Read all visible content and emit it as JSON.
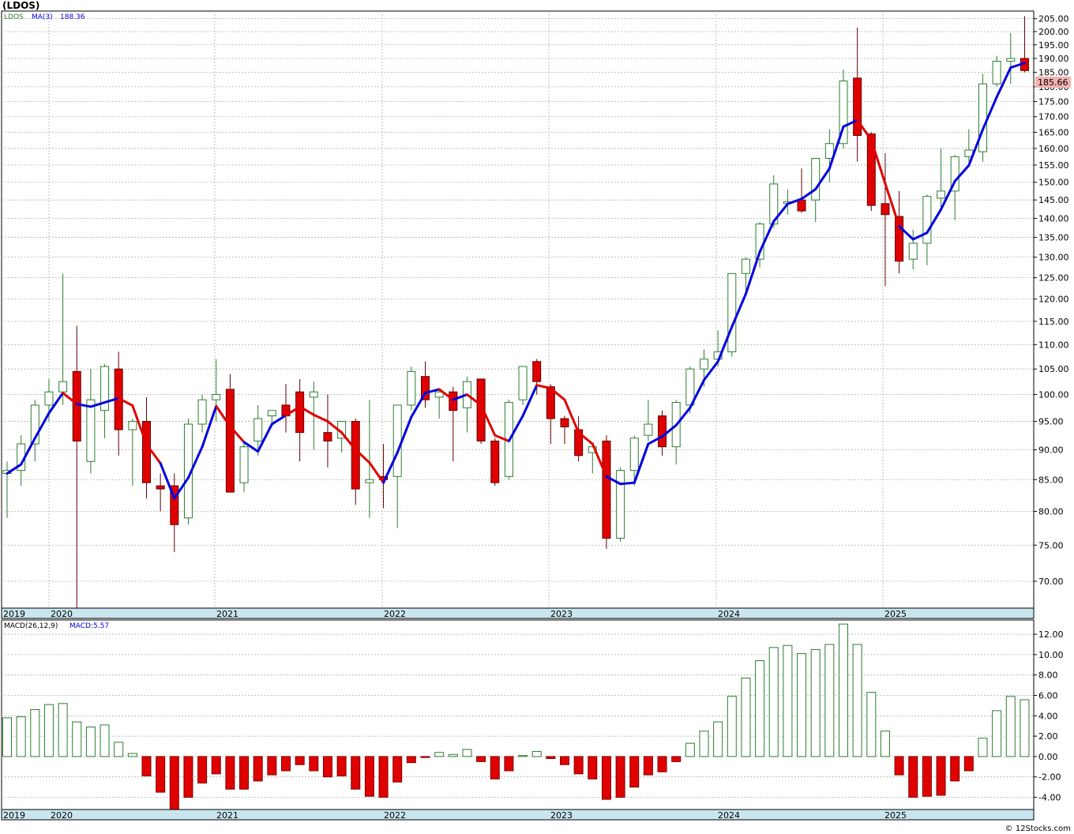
{
  "header": {
    "title": "(LDOS)",
    "credit": "© 12Stocks.com"
  },
  "colors": {
    "up": "#2e7d32",
    "down": "#e00000",
    "ma_up": "#0000e0",
    "ma_down": "#e00000",
    "axis_band": "#c9e6ef",
    "grid": "#b0b0b0",
    "last_price_bg": "#f4b0b0"
  },
  "chart_data": [
    {
      "type": "candlestick",
      "ticker": "LDOS",
      "legend": {
        "symbol": "LDOS",
        "ma_label": "MA(3)",
        "ma_value": "188.36"
      },
      "last_price": "185.66",
      "scale": "log",
      "ylim": [
        66.5,
        208
      ],
      "y_ticks": [
        "205.00",
        "200.00",
        "195.00",
        "190.00",
        "185.00",
        "180.00",
        "175.00",
        "170.00",
        "165.00",
        "160.00",
        "155.00",
        "150.00",
        "145.00",
        "140.00",
        "135.00",
        "130.00",
        "125.00",
        "120.00",
        "115.00",
        "110.00",
        "105.00",
        "100.00",
        "95.00",
        "90.00",
        "85.00",
        "80.00",
        "75.00",
        "70.00"
      ],
      "year_labels": [
        "2019",
        "2020",
        "2021",
        "2022",
        "2023",
        "2024",
        "2025"
      ],
      "candles": [
        [
          86.0,
          88.0,
          79.0,
          86.5
        ],
        [
          86.5,
          92.5,
          84.0,
          91.0
        ],
        [
          91.0,
          99.0,
          88.0,
          98.0
        ],
        [
          98.0,
          103.0,
          95.0,
          100.5
        ],
        [
          100.5,
          126.0,
          98.0,
          102.5
        ],
        [
          104.5,
          114.0,
          66.5,
          91.5
        ],
        [
          88.0,
          105.0,
          86.0,
          99.0
        ],
        [
          97.0,
          106.0,
          92.0,
          105.5
        ],
        [
          105.0,
          108.5,
          89.0,
          93.5
        ],
        [
          93.5,
          95.5,
          84.0,
          95.0
        ],
        [
          95.0,
          99.5,
          82.0,
          84.5
        ],
        [
          84.0,
          86.0,
          80.0,
          83.5
        ],
        [
          84.0,
          86.0,
          74.0,
          78.0
        ],
        [
          79.0,
          95.5,
          78.0,
          94.5
        ],
        [
          94.5,
          100.0,
          93.0,
          99.0
        ],
        [
          99.0,
          107.0,
          95.0,
          100.0
        ],
        [
          101.0,
          104.0,
          83.0,
          83.0
        ],
        [
          84.5,
          91.5,
          83.0,
          90.5
        ],
        [
          91.5,
          98.0,
          89.0,
          95.5
        ],
        [
          96.0,
          97.0,
          94.5,
          97.0
        ],
        [
          98.0,
          102.0,
          93.0,
          96.0
        ],
        [
          100.5,
          103.0,
          88.0,
          93.0
        ],
        [
          99.5,
          102.5,
          90.0,
          100.5
        ],
        [
          93.0,
          100.0,
          87.0,
          91.5
        ],
        [
          92.0,
          95.0,
          89.5,
          95.0
        ],
        [
          95.0,
          95.5,
          81.0,
          83.5
        ],
        [
          84.5,
          99.0,
          79.0,
          85.0
        ],
        [
          85.5,
          91.0,
          80.5,
          85.0
        ],
        [
          85.5,
          98.0,
          77.5,
          98.0
        ],
        [
          98.0,
          105.5,
          97.0,
          104.5
        ],
        [
          103.5,
          106.5,
          97.5,
          99.0
        ],
        [
          99.5,
          101.0,
          95.5,
          100.5
        ],
        [
          100.5,
          101.5,
          88.0,
          97.0
        ],
        [
          97.5,
          103.5,
          93.0,
          102.5
        ],
        [
          103.0,
          103.0,
          91.0,
          91.5
        ],
        [
          91.5,
          92.0,
          84.0,
          84.5
        ],
        [
          85.5,
          99.0,
          85.0,
          98.5
        ],
        [
          99.0,
          105.5,
          98.0,
          105.5
        ],
        [
          106.5,
          107.0,
          100.0,
          102.5
        ],
        [
          101.5,
          102.0,
          91.0,
          95.5
        ],
        [
          95.5,
          96.0,
          91.0,
          94.0
        ],
        [
          93.5,
          96.0,
          88.0,
          89.0
        ],
        [
          89.5,
          91.0,
          86.0,
          90.5
        ],
        [
          91.5,
          92.5,
          74.5,
          76.0
        ],
        [
          76.0,
          87.0,
          75.5,
          86.5
        ],
        [
          86.5,
          92.5,
          84.0,
          92.0
        ],
        [
          92.5,
          99.0,
          91.5,
          94.5
        ],
        [
          96.0,
          97.0,
          89.0,
          90.5
        ],
        [
          90.5,
          99.0,
          87.5,
          98.5
        ],
        [
          98.0,
          105.5,
          96.5,
          105.0
        ],
        [
          105.0,
          109.0,
          101.5,
          107.0
        ],
        [
          107.0,
          113.0,
          105.5,
          108.5
        ],
        [
          108.5,
          126.0,
          107.5,
          126.0
        ],
        [
          126.0,
          130.0,
          121.5,
          129.5
        ],
        [
          129.5,
          139.0,
          127.5,
          138.5
        ],
        [
          138.5,
          152.0,
          137.5,
          149.5
        ],
        [
          144.0,
          148.0,
          141.0,
          144.5
        ],
        [
          145.0,
          154.0,
          141.5,
          142.0
        ],
        [
          145.0,
          157.0,
          139.0,
          157.0
        ],
        [
          157.0,
          166.0,
          150.0,
          161.5
        ],
        [
          161.5,
          186.0,
          160.0,
          182.0
        ],
        [
          183.0,
          201.5,
          156.0,
          164.0
        ],
        [
          164.5,
          165.0,
          142.0,
          143.5
        ],
        [
          144.0,
          158.5,
          123.0,
          141.0
        ],
        [
          140.5,
          147.5,
          126.0,
          129.0
        ],
        [
          129.5,
          137.0,
          127.0,
          133.5
        ],
        [
          133.5,
          146.5,
          128.0,
          146.0
        ],
        [
          145.5,
          160.0,
          143.0,
          147.5
        ],
        [
          147.5,
          158.0,
          139.5,
          157.5
        ],
        [
          157.5,
          166.0,
          156.0,
          159.5
        ],
        [
          159.0,
          184.5,
          156.0,
          181.0
        ],
        [
          181.0,
          191.0,
          180.0,
          189.0
        ],
        [
          189.0,
          199.5,
          181.0,
          190.0
        ],
        [
          190.0,
          206.0,
          185.0,
          185.66
        ]
      ],
      "ma": [
        86.0,
        87.5,
        92.0,
        96.5,
        100.3,
        98.2,
        97.7,
        98.5,
        99.3,
        97.9,
        90.9,
        87.7,
        82.0,
        85.3,
        90.5,
        97.8,
        94.1,
        91.3,
        89.7,
        94.5,
        96.1,
        97.7,
        96.2,
        95.0,
        93.0,
        90.0,
        87.8,
        84.5,
        89.5,
        95.8,
        100.3,
        101.0,
        99.0,
        100.0,
        98.0,
        92.5,
        91.5,
        96.0,
        101.8,
        101.2,
        99.0,
        93.0,
        91.0,
        85.5,
        84.3,
        84.5,
        91.0,
        92.3,
        94.3,
        97.5,
        102.8,
        106.5,
        113.8,
        121.2,
        131.3,
        139.2,
        143.9,
        145.3,
        148.0,
        154.0,
        166.8,
        168.9,
        162.6,
        149.6,
        137.9,
        134.5,
        136.2,
        142.4,
        150.3,
        154.9,
        165.9,
        176.5,
        186.7,
        188.36
      ],
      "ma_color": [
        "up",
        "up",
        "up",
        "up",
        "up",
        "down",
        "up",
        "up",
        "up",
        "down",
        "down",
        "down",
        "up",
        "up",
        "up",
        "up",
        "down",
        "down",
        "up",
        "up",
        "up",
        "down",
        "down",
        "down",
        "down",
        "down",
        "down",
        "down",
        "up",
        "up",
        "up",
        "up",
        "down",
        "up",
        "down",
        "down",
        "down",
        "up",
        "up",
        "down",
        "down",
        "down",
        "down",
        "down",
        "up",
        "up",
        "up",
        "up",
        "up",
        "up",
        "up",
        "up",
        "up",
        "up",
        "up",
        "up",
        "up",
        "up",
        "up",
        "up",
        "up",
        "up",
        "down",
        "down",
        "down",
        "up",
        "up",
        "up",
        "up",
        "up",
        "up",
        "up",
        "up",
        "up"
      ]
    },
    {
      "type": "bar",
      "name": "MACD(26,12,9)",
      "legend": {
        "label": "MACD(26,12,9)",
        "value_label": "MACD:5.57"
      },
      "ylim": [
        -5.2,
        13.4
      ],
      "y_ticks": [
        "12.00",
        "10.00",
        "8.00",
        "6.00",
        "4.00",
        "2.00",
        "0.00",
        "-2.00",
        "-4.00"
      ],
      "year_labels": [
        "2019",
        "2020",
        "2021",
        "2022",
        "2023",
        "2024",
        "2025"
      ],
      "values": [
        3.8,
        3.9,
        4.6,
        5.1,
        5.2,
        3.4,
        2.9,
        3.1,
        1.4,
        0.3,
        -1.9,
        -3.5,
        -5.2,
        -4.0,
        -2.6,
        -1.7,
        -3.2,
        -3.2,
        -2.4,
        -1.8,
        -1.4,
        -0.8,
        -1.4,
        -2.0,
        -1.9,
        -3.2,
        -3.9,
        -4.0,
        -2.5,
        -0.6,
        -0.1,
        0.4,
        0.2,
        0.7,
        -0.5,
        -2.2,
        -1.4,
        0.1,
        0.5,
        -0.2,
        -0.8,
        -1.7,
        -2.2,
        -4.2,
        -4.0,
        -3.0,
        -1.8,
        -1.5,
        -0.5,
        1.3,
        2.5,
        3.4,
        5.9,
        7.7,
        9.4,
        10.7,
        10.9,
        10.1,
        10.5,
        11.0,
        13.0,
        11.0,
        6.3,
        2.5,
        -1.8,
        -4.0,
        -3.9,
        -3.8,
        -2.4,
        -1.4,
        1.8,
        4.5,
        5.9,
        5.57
      ]
    }
  ]
}
